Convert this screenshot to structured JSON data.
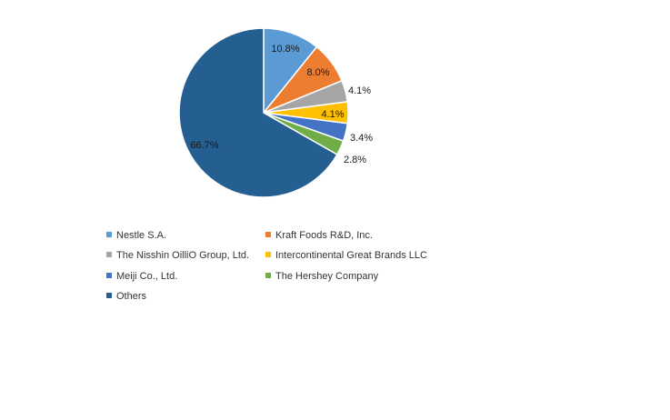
{
  "chart_data": {
    "type": "pie",
    "title": "",
    "slices": [
      {
        "name": "Nestle S.A.",
        "value": 10.8,
        "label": "10.8%",
        "color": "#5b9bd5",
        "label_color": "#1a1a1a"
      },
      {
        "name": "Kraft Foods R&D, Inc.",
        "value": 8.0,
        "label": "8.0%",
        "color": "#ed7d31",
        "label_color": "#1a1a1a"
      },
      {
        "name": "The Nisshin OilliO Group, Ltd.",
        "value": 4.1,
        "label": "4.1%",
        "color": "#a5a5a5",
        "label_color": "#1a1a1a"
      },
      {
        "name": "Intercontinental Great Brands LLC",
        "value": 4.1,
        "label": "4.1%",
        "color": "#ffc000",
        "label_color": "#1a1a1a"
      },
      {
        "name": "Meiji Co., Ltd.",
        "value": 3.4,
        "label": "3.4%",
        "color": "#4472c4",
        "label_color": "#1a1a1a"
      },
      {
        "name": "The Hershey Company",
        "value": 2.8,
        "label": "2.8%",
        "color": "#70ad47",
        "label_color": "#1a1a1a"
      },
      {
        "name": "Others",
        "value": 66.7,
        "label": "66.7%",
        "color": "#255e91",
        "label_color": "#1a1a1a"
      }
    ],
    "legend_placement": "bottom",
    "legend_order": [
      0,
      1,
      2,
      3,
      4,
      5,
      6
    ]
  }
}
